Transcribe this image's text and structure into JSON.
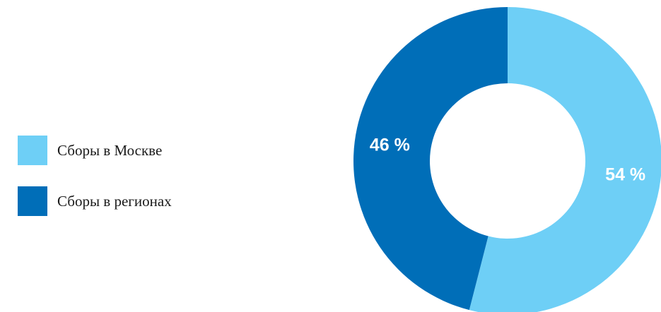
{
  "chart_data": {
    "type": "pie",
    "title": "",
    "legend_position": "left",
    "categories": [
      "Сборы в Москве",
      "Сборы в регионах"
    ],
    "values": [
      54,
      46
    ],
    "data_labels": [
      "54 %",
      "46 %"
    ],
    "colors": [
      "#6ecff6",
      "#006eb8"
    ]
  }
}
